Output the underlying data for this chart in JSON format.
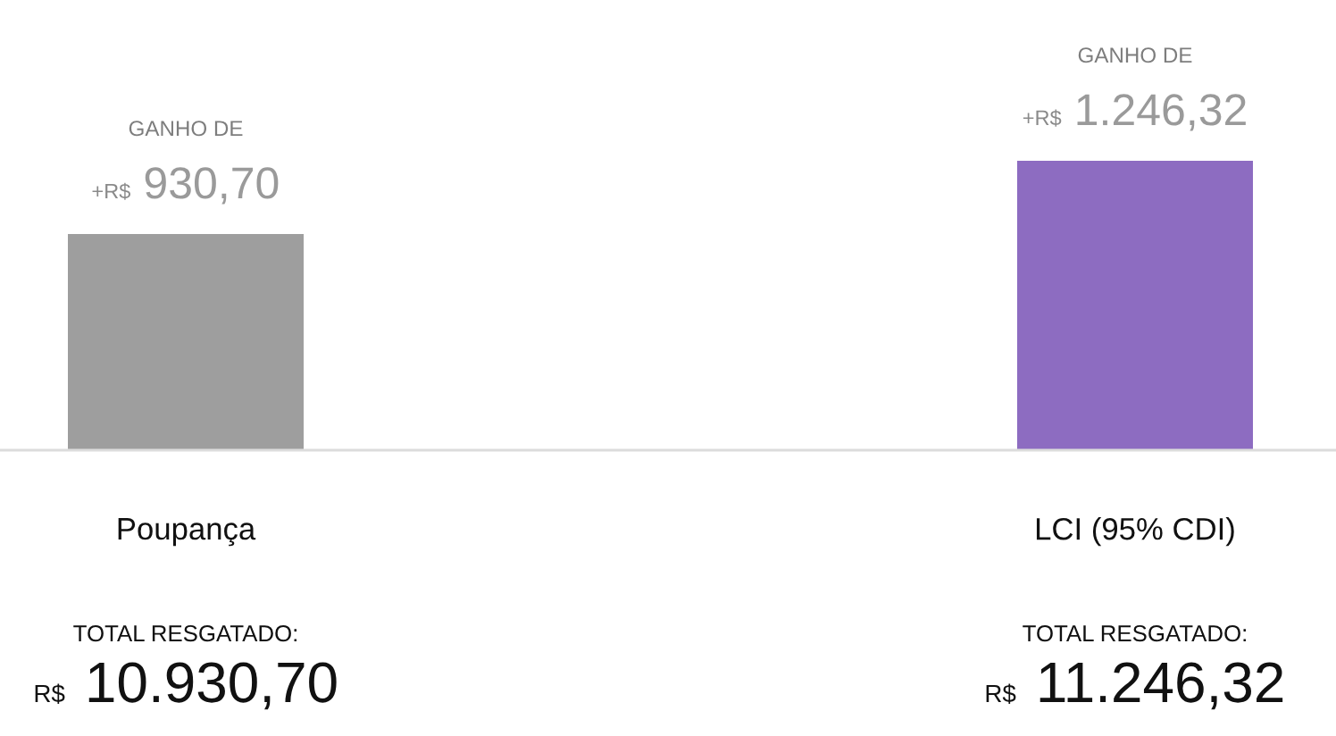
{
  "chart_data": {
    "type": "bar",
    "categories": [
      "Poupança",
      "LCI (95% CDI)"
    ],
    "values": [
      930.7,
      1246.32
    ],
    "colors": [
      "#9e9e9e",
      "#8d6cc1"
    ],
    "value_labels": [
      "+R$ 930,70",
      "+R$ 1.246,32"
    ],
    "tick_labels": "x",
    "annotations": [
      "GANHO DE",
      "GANHO DE",
      "TOTAL RESGATADO:",
      "R$ 10.930,70",
      "TOTAL RESGATADO:",
      "R$ 11.246,32"
    ]
  }
}
